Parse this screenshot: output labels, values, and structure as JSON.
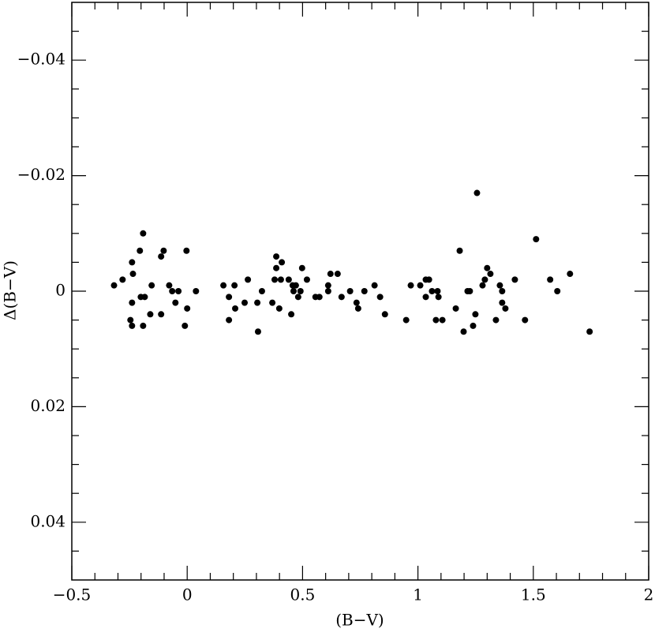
{
  "chart_data": {
    "type": "scatter",
    "x_label": "(B−V)",
    "y_label": "Δ(B−V)",
    "xlim": [
      -0.5,
      2
    ],
    "ylim": [
      0.05,
      -0.05
    ],
    "xticks": [
      {
        "value": -0.5,
        "label": "−0.5"
      },
      0,
      0.5,
      1,
      1.5,
      2
    ],
    "yticks": [
      {
        "value": -0.04,
        "label": "−0.04"
      },
      {
        "value": -0.02,
        "label": "−0.02"
      },
      0,
      0.02,
      0.04
    ],
    "xminor": [
      -0.4,
      -0.3,
      -0.2,
      -0.1,
      0.1,
      0.2,
      0.3,
      0.4,
      0.6,
      0.7,
      0.8,
      0.9,
      1.1,
      1.2,
      1.3,
      1.4,
      1.6,
      1.7,
      1.8,
      1.9
    ],
    "yminor": [
      -0.045,
      -0.035,
      -0.03,
      -0.025,
      -0.015,
      -0.01,
      -0.005,
      0.005,
      0.01,
      0.015,
      0.025,
      0.03,
      0.035,
      0.045
    ],
    "color": "#000000",
    "x": [
      -0.317,
      -0.28,
      -0.239,
      -0.235,
      -0.246,
      -0.239,
      -0.239,
      -0.205,
      -0.191,
      -0.201,
      -0.184,
      -0.191,
      -0.16,
      -0.154,
      -0.113,
      -0.102,
      -0.113,
      -0.078,
      -0.065,
      -0.051,
      -0.038,
      -0.01,
      -0.003,
      0,
      0.038,
      0.157,
      0.181,
      0.181,
      0.205,
      0.208,
      0.249,
      0.263,
      0.304,
      0.307,
      0.324,
      0.369,
      0.379,
      0.386,
      0.386,
      0.399,
      0.41,
      0.406,
      0.44,
      0.451,
      0.457,
      0.461,
      0.471,
      0.481,
      0.498,
      0.491,
      0.519,
      0.556,
      0.573,
      0.611,
      0.611,
      0.621,
      0.652,
      0.669,
      0.706,
      0.734,
      0.741,
      0.768,
      0.812,
      0.836,
      0.857,
      0.949,
      0.969,
      1.01,
      1.034,
      1.034,
      1.048,
      1.061,
      1.078,
      1.085,
      1.089,
      1.106,
      1.164,
      1.181,
      1.198,
      1.215,
      1.225,
      1.239,
      1.249,
      1.256,
      1.28,
      1.29,
      1.3,
      1.314,
      1.338,
      1.355,
      1.365,
      1.365,
      1.379,
      1.42,
      1.464,
      1.512,
      1.573,
      1.604,
      1.659,
      1.744
    ],
    "values": [
      -0.001,
      -0.002,
      -0.005,
      -0.003,
      0.005,
      0.006,
      0.002,
      -0.007,
      -0.01,
      0.001,
      0.001,
      0.006,
      0.004,
      -0.001,
      -0.006,
      -0.007,
      0.004,
      -0.001,
      0,
      0.002,
      0,
      0.006,
      -0.007,
      0.003,
      0,
      -0.001,
      0.001,
      0.005,
      -0.001,
      0.003,
      0.002,
      -0.002,
      0.002,
      0.007,
      0,
      0.002,
      -0.002,
      -0.006,
      -0.004,
      0.003,
      -0.005,
      -0.002,
      -0.002,
      0.004,
      -0.001,
      0,
      -0.001,
      0.001,
      -0.004,
      0,
      -0.002,
      0.001,
      0.001,
      -0.001,
      0,
      -0.003,
      -0.003,
      0.001,
      0,
      0.002,
      0.003,
      0,
      -0.001,
      0.001,
      0.004,
      0.005,
      -0.001,
      -0.001,
      -0.002,
      0.001,
      -0.002,
      0,
      0.005,
      0,
      0.001,
      0.005,
      0.003,
      -0.007,
      0.007,
      0,
      0,
      0.006,
      0.004,
      -0.017,
      -0.001,
      -0.002,
      -0.004,
      -0.003,
      0.005,
      -0.001,
      0,
      0.002,
      0.003,
      -0.002,
      0.005,
      -0.009,
      -0.002,
      0,
      -0.003,
      0.007
    ]
  }
}
